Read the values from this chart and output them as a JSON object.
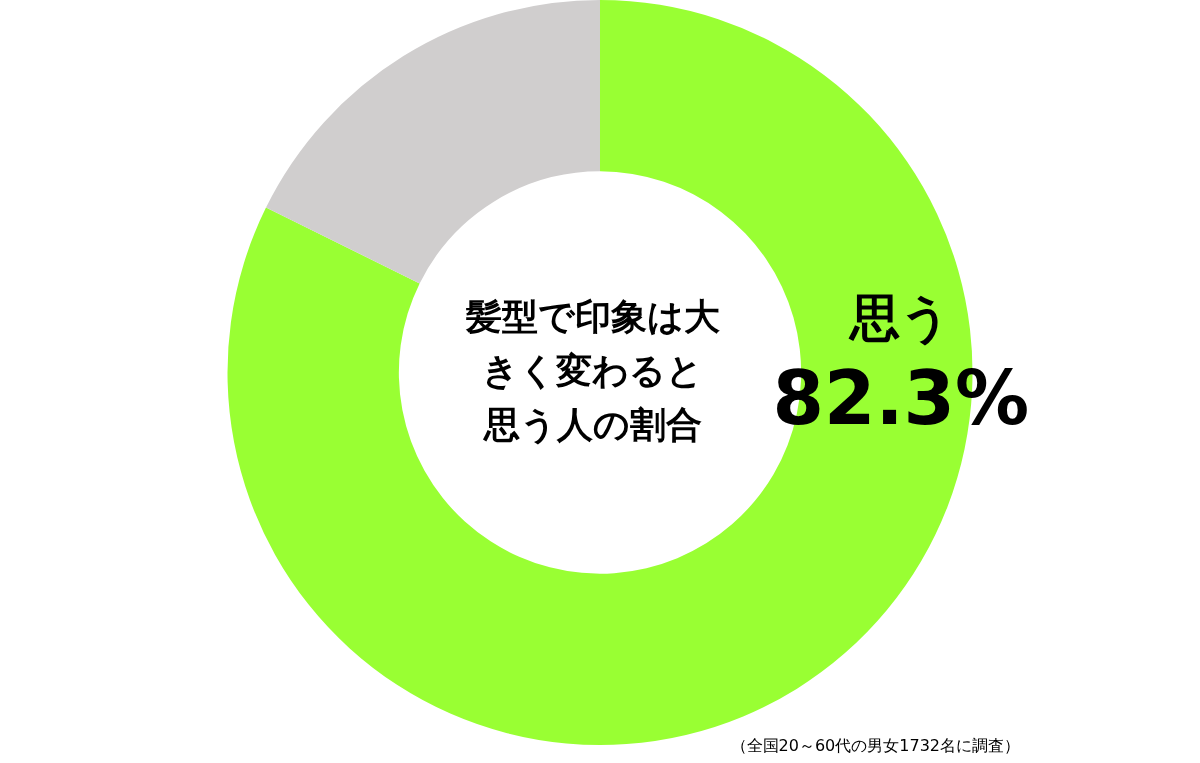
{
  "chart_data": {
    "type": "donut",
    "title": "髪型で印象は大きく変わると思う人の割合",
    "categories": [
      "思う",
      null
    ],
    "values": [
      82.3,
      17.7
    ],
    "colors": [
      "#99ff33",
      "#d0cece"
    ],
    "value_labels": [
      "82.3%",
      null
    ],
    "legend": false,
    "annotations": [
      "（全国20～60代の男女1732名に調査）"
    ]
  }
}
